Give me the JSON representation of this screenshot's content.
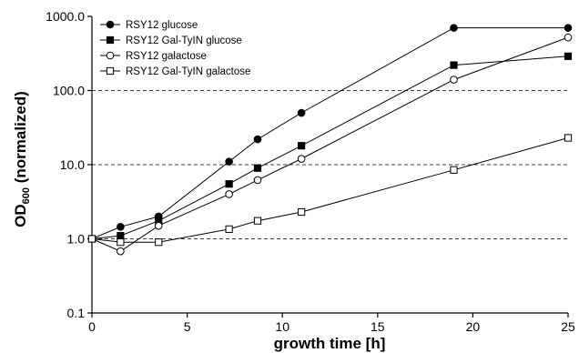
{
  "chart_data": {
    "type": "line",
    "xlabel": "growth time [h]",
    "ylabel_main": "OD",
    "ylabel_sub": "600",
    "ylabel_suffix": " (normalized)",
    "y_scale": "log",
    "ylim": [
      0.1,
      1000
    ],
    "xlim": [
      0,
      25
    ],
    "x_ticks": [
      0,
      5,
      10,
      15,
      20,
      25
    ],
    "x_tick_labels": [
      "0",
      "5",
      "10",
      "15",
      "20",
      "25"
    ],
    "y_ticks": [
      0.1,
      1,
      10,
      100,
      1000
    ],
    "y_tick_labels": [
      "0.1",
      "1.0",
      "10.0",
      "100.0",
      "1000.0"
    ],
    "grid": "dashed horizontal at 1, 10, 100",
    "legend_position": "top-left",
    "series": [
      {
        "name": "RSY12 glucose",
        "marker": "filled-circle",
        "x": [
          0,
          1.5,
          3.5,
          7.2,
          8.7,
          11,
          19,
          25
        ],
        "y": [
          1.0,
          1.45,
          2.0,
          11,
          22,
          50,
          700,
          700
        ]
      },
      {
        "name": "RSY12 Gal-TyIN glucose",
        "marker": "filled-square",
        "x": [
          0,
          1.5,
          3.5,
          7.2,
          8.7,
          11,
          19,
          25
        ],
        "y": [
          1.0,
          1.1,
          1.75,
          5.5,
          9,
          18,
          220,
          290
        ]
      },
      {
        "name": "RSY12 galactose",
        "marker": "open-circle",
        "x": [
          0,
          1.5,
          3.5,
          7.2,
          8.7,
          11,
          19,
          25
        ],
        "y": [
          1.0,
          0.68,
          1.5,
          4.0,
          6.2,
          12,
          140,
          520
        ]
      },
      {
        "name": "RSY12 Gal-TyIN galactose",
        "marker": "open-square",
        "x": [
          0,
          1.5,
          3.5,
          7.2,
          8.7,
          11,
          19,
          25
        ],
        "y": [
          1.0,
          0.9,
          0.9,
          1.35,
          1.75,
          2.3,
          8.5,
          23
        ]
      }
    ]
  }
}
